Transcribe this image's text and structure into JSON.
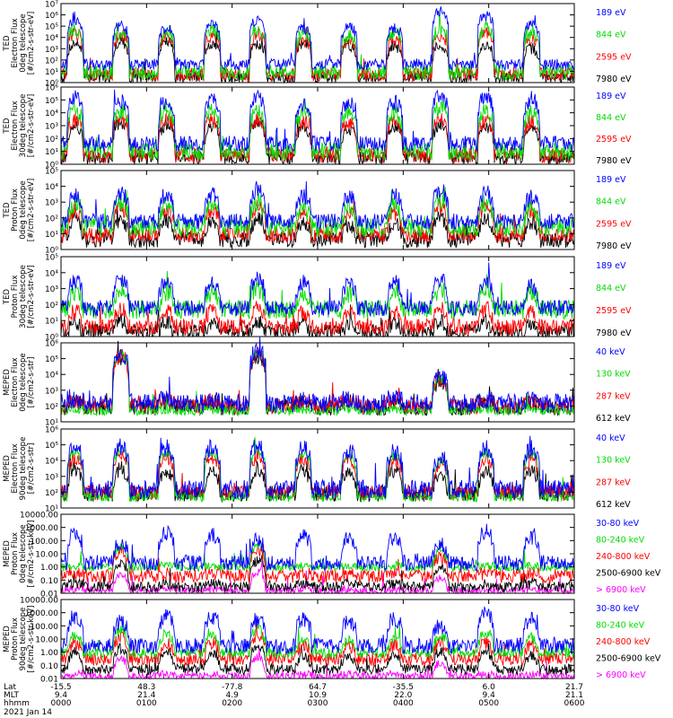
{
  "figure": {
    "date": "2021 Jan 14",
    "footer_row_labels": [
      "Lat",
      "MLT",
      "hhmm"
    ]
  },
  "colors": {
    "black": "#000000",
    "red": "#ff0000",
    "green": "#00dd00",
    "blue": "#0000ff",
    "magenta": "#ff00ff",
    "white": "#ffffff"
  },
  "chart_data": [
    {
      "type": "line",
      "id": "ted-electron-0",
      "ylabel": [
        "TED",
        "Electron Flux",
        "0deg telescope",
        "[#/cm2-s-str-eV]"
      ],
      "yscale": "log",
      "ylim": [
        1,
        10000000
      ],
      "yticks": [
        "10⁰",
        "10¹",
        "10²",
        "10³",
        "10⁴",
        "10⁵",
        "10⁶",
        "10⁷"
      ],
      "ytick_values": [
        1,
        10,
        100,
        1000,
        10000,
        100000,
        1000000,
        10000000
      ],
      "xlim": [
        0,
        360
      ],
      "series": [
        {
          "name": "7980 eV",
          "color": "black",
          "base": 8,
          "quiet": 3,
          "noise": 0.5,
          "amp": [
            3000,
            4000,
            4000,
            3000,
            2500,
            3000,
            2000,
            1500,
            2000,
            1500,
            1000
          ]
        },
        {
          "name": "2595 eV",
          "color": "red",
          "base": 20,
          "quiet": 5,
          "noise": 0.6,
          "amp": [
            20000,
            15000,
            12000,
            12000,
            15000,
            6000,
            4000,
            6000,
            15000,
            30000,
            8000
          ]
        },
        {
          "name": "844 eV",
          "color": "green",
          "base": 50,
          "quiet": 8,
          "noise": 0.7,
          "amp": [
            60000,
            30000,
            30000,
            40000,
            60000,
            15000,
            15000,
            20000,
            80000,
            60000,
            30000
          ]
        },
        {
          "name": "189 eV",
          "color": "blue",
          "base": 80,
          "quiet": 40,
          "noise": 0.5,
          "amp": [
            300000,
            100000,
            60000,
            150000,
            300000,
            60000,
            100000,
            80000,
            2000000,
            800000,
            150000
          ]
        }
      ]
    },
    {
      "type": "line",
      "id": "ted-electron-30",
      "ylabel": [
        "TED",
        "Electron Flux",
        "30deg telescope",
        "[#/cm2-s-str-eV]"
      ],
      "yscale": "log",
      "ylim": [
        1,
        1000000
      ],
      "yticks": [
        "10⁰",
        "10¹",
        "10²",
        "10³",
        "10⁴",
        "10⁵",
        "10⁶"
      ],
      "ytick_values": [
        1,
        10,
        100,
        1000,
        10000,
        100000,
        1000000
      ],
      "xlim": [
        0,
        360
      ],
      "series": [
        {
          "name": "7980 eV",
          "color": "black",
          "base": 6,
          "quiet": 3,
          "noise": 0.5,
          "amp": [
            800,
            1500,
            1000,
            800,
            1500,
            600,
            600,
            800,
            1000,
            800,
            500
          ]
        },
        {
          "name": "2595 eV",
          "color": "red",
          "base": 15,
          "quiet": 5,
          "noise": 0.6,
          "amp": [
            3000,
            3000,
            3000,
            2500,
            3000,
            2000,
            2000,
            2500,
            3000,
            2000,
            2000
          ]
        },
        {
          "name": "844 eV",
          "color": "green",
          "base": 30,
          "quiet": 10,
          "noise": 0.7,
          "amp": [
            15000,
            12000,
            12000,
            12000,
            12000,
            8000,
            8000,
            10000,
            30000,
            12000,
            8000
          ]
        },
        {
          "name": "189 eV",
          "color": "blue",
          "base": 60,
          "quiet": 40,
          "noise": 0.6,
          "amp": [
            150000,
            80000,
            60000,
            100000,
            150000,
            40000,
            60000,
            60000,
            200000,
            150000,
            60000
          ]
        }
      ]
    },
    {
      "type": "line",
      "id": "ted-proton-0",
      "ylabel": [
        "TED",
        "Proton Flux",
        "0deg telescope",
        "[#/cm2-s-str-eV]"
      ],
      "yscale": "log",
      "ylim": [
        1,
        100000
      ],
      "yticks": [
        "10⁰",
        "10¹",
        "10²",
        "10³",
        "10⁴",
        "10⁵"
      ],
      "ytick_values": [
        1,
        10,
        100,
        1000,
        10000,
        100000
      ],
      "xlim": [
        0,
        360
      ],
      "series": [
        {
          "name": "7980 eV",
          "color": "black",
          "base": 5,
          "quiet": 4,
          "noise": 0.5,
          "amp": [
            60,
            80,
            60,
            60,
            80,
            50,
            40,
            50,
            100,
            80,
            50
          ]
        },
        {
          "name": "2595 eV",
          "color": "red",
          "base": 12,
          "quiet": 8,
          "noise": 0.5,
          "amp": [
            300,
            400,
            300,
            300,
            500,
            200,
            200,
            200,
            600,
            400,
            200
          ]
        },
        {
          "name": "844 eV",
          "color": "green",
          "base": 30,
          "quiet": 25,
          "noise": 0.6,
          "amp": [
            800,
            1000,
            600,
            700,
            1000,
            400,
            400,
            500,
            1500,
            800,
            400
          ]
        },
        {
          "name": "189 eV",
          "color": "blue",
          "base": 60,
          "quiet": 60,
          "noise": 0.5,
          "amp": [
            3000,
            4000,
            3000,
            3000,
            5000,
            2500,
            2000,
            2500,
            6000,
            4000,
            2000
          ]
        }
      ]
    },
    {
      "type": "line",
      "id": "ted-proton-30",
      "ylabel": [
        "TED",
        "Proton Flux",
        "30deg telescope",
        "[#/cm2-s-str-eV]"
      ],
      "yscale": "log",
      "ylim": [
        1,
        100000
      ],
      "yticks": [
        "10⁰",
        "10¹",
        "10²",
        "10³",
        "10⁴",
        "10⁵"
      ],
      "ytick_values": [
        1,
        10,
        100,
        1000,
        10000,
        100000
      ],
      "xlim": [
        0,
        360
      ],
      "series": [
        {
          "name": "7980 eV",
          "color": "black",
          "base": 2,
          "quiet": 2,
          "noise": 0.5,
          "amp": [
            8,
            10,
            8,
            8,
            10,
            6,
            6,
            8,
            10,
            8,
            6
          ]
        },
        {
          "name": "2595 eV",
          "color": "red",
          "base": 5,
          "quiet": 4,
          "noise": 0.5,
          "amp": [
            40,
            50,
            40,
            40,
            60,
            30,
            30,
            30,
            60,
            50,
            30
          ]
        },
        {
          "name": "844 eV",
          "color": "green",
          "base": 60,
          "quiet": 50,
          "noise": 0.6,
          "amp": [
            600,
            800,
            600,
            600,
            900,
            500,
            500,
            600,
            900,
            800,
            500
          ]
        },
        {
          "name": "189 eV",
          "color": "blue",
          "base": 60,
          "quiet": 60,
          "noise": 0.5,
          "amp": [
            3000,
            4000,
            3000,
            2500,
            4000,
            2500,
            2000,
            2500,
            4000,
            3000,
            1500
          ]
        }
      ]
    },
    {
      "type": "line",
      "id": "meped-electron-0",
      "ylabel": [
        "MEPED",
        "Electron Flux",
        "0deg telescope",
        "[#/cm2-s-str]"
      ],
      "yscale": "log",
      "ylim": [
        10,
        1000000
      ],
      "yticks": [
        "10¹",
        "10²",
        "10³",
        "10⁴",
        "10⁵",
        "10⁶"
      ],
      "ytick_values": [
        10,
        100,
        1000,
        10000,
        100000,
        1000000
      ],
      "xlim": [
        0,
        360
      ],
      "series": [
        {
          "name": "612 keV",
          "color": "black",
          "base": 150,
          "quiet": 80,
          "noise": 0.5,
          "amp": [
            0,
            100000,
            0,
            0,
            120000,
            0,
            0,
            0,
            4000,
            0,
            0
          ]
        },
        {
          "name": "287 keV",
          "color": "red",
          "base": 200,
          "quiet": 100,
          "noise": 0.5,
          "amp": [
            0,
            150000,
            0,
            0,
            200000,
            0,
            0,
            0,
            5000,
            0,
            0
          ]
        },
        {
          "name": "130 keV",
          "color": "green",
          "base": 60,
          "quiet": 50,
          "noise": 0.3,
          "amp": [
            0,
            200000,
            0,
            0,
            300000,
            0,
            0,
            0,
            6000,
            0,
            0
          ]
        },
        {
          "name": "40 keV",
          "color": "blue",
          "base": 250,
          "quiet": 150,
          "noise": 0.6,
          "amp": [
            0,
            250000,
            0,
            0,
            400000,
            0,
            0,
            0,
            8000,
            0,
            0
          ]
        }
      ]
    },
    {
      "type": "line",
      "id": "meped-electron-90",
      "ylabel": [
        "MEPED",
        "Electron Flux",
        "90deg telescope",
        "[#/cm2-s-str]"
      ],
      "yscale": "log",
      "ylim": [
        10,
        1000000
      ],
      "yticks": [
        "10¹",
        "10²",
        "10³",
        "10⁴",
        "10⁵",
        "10⁶"
      ],
      "ytick_values": [
        10,
        100,
        1000,
        10000,
        100000,
        1000000
      ],
      "xlim": [
        0,
        360
      ],
      "series": [
        {
          "name": "612 keV",
          "color": "black",
          "base": 150,
          "quiet": 80,
          "noise": 0.5,
          "amp": [
            2000,
            3000,
            2000,
            2000,
            3000,
            2000,
            2000,
            2000,
            1000,
            2000,
            2000
          ]
        },
        {
          "name": "287 keV",
          "color": "red",
          "base": 200,
          "quiet": 100,
          "noise": 0.5,
          "amp": [
            15000,
            20000,
            15000,
            15000,
            20000,
            15000,
            10000,
            10000,
            5000,
            15000,
            10000
          ]
        },
        {
          "name": "130 keV",
          "color": "green",
          "base": 60,
          "quiet": 50,
          "noise": 0.3,
          "amp": [
            30000,
            40000,
            30000,
            30000,
            40000,
            25000,
            20000,
            20000,
            8000,
            30000,
            25000
          ]
        },
        {
          "name": "40 keV",
          "color": "blue",
          "base": 250,
          "quiet": 150,
          "noise": 0.6,
          "amp": [
            60000,
            80000,
            60000,
            60000,
            80000,
            50000,
            40000,
            40000,
            15000,
            60000,
            50000
          ]
        }
      ]
    },
    {
      "type": "line",
      "id": "meped-proton-0",
      "ylabel": [
        "MEPED",
        "Proton Flux",
        "0deg telescope",
        "[#/cm2-s-str-keV]"
      ],
      "yscale": "log",
      "ylim": [
        0.01,
        10000
      ],
      "yticks": [
        "0.01",
        "0.10",
        "1.00",
        "10.00",
        "100.00",
        "1000.00",
        "10000.00"
      ],
      "ytick_values": [
        0.01,
        0.1,
        1,
        10,
        100,
        1000,
        10000
      ],
      "xlim": [
        0,
        360
      ],
      "series": [
        {
          "name": "> 6900 keV",
          "color": "magenta",
          "base": 0.02,
          "quiet": 0.015,
          "noise": 0.3,
          "amp": [
            0,
            0.3,
            0,
            0,
            0.4,
            0,
            0,
            0,
            0.15,
            0,
            0
          ]
        },
        {
          "name": "2500-6900 keV",
          "color": "black",
          "base": 0.05,
          "quiet": 0.03,
          "noise": 0.4,
          "amp": [
            0,
            2,
            0,
            0,
            3,
            0,
            0,
            0,
            1,
            0,
            0
          ]
        },
        {
          "name": "240-800 keV",
          "color": "red",
          "base": 0.3,
          "quiet": 0.2,
          "noise": 0.5,
          "amp": [
            0,
            15,
            0,
            0,
            20,
            0,
            0,
            0,
            6,
            0,
            0
          ]
        },
        {
          "name": "80-240 keV",
          "color": "green",
          "base": 1.2,
          "quiet": 0.9,
          "noise": 0.3,
          "amp": [
            0,
            30,
            0,
            0,
            40,
            0,
            0,
            0,
            15,
            0,
            0
          ]
        },
        {
          "name": "30-80 keV",
          "color": "blue",
          "base": 3,
          "quiet": 2,
          "noise": 0.6,
          "amp": [
            300,
            80,
            400,
            300,
            100,
            200,
            150,
            200,
            60,
            500,
            150
          ]
        }
      ]
    },
    {
      "type": "line",
      "id": "meped-proton-90",
      "ylabel": [
        "MEPED",
        "Proton Flux",
        "90deg telescope",
        "[#/cm2-s-str-keV]"
      ],
      "yscale": "log",
      "ylim": [
        0.01,
        10000
      ],
      "yticks": [
        "0.01",
        "0.10",
        "1.00",
        "10.00",
        "100.00",
        "1000.00",
        "10000.00"
      ],
      "ytick_values": [
        0.01,
        0.1,
        1,
        10,
        100,
        1000,
        10000
      ],
      "xlim": [
        0,
        360
      ],
      "series": [
        {
          "name": "> 6900 keV",
          "color": "magenta",
          "base": 0.02,
          "quiet": 0.015,
          "noise": 0.3,
          "amp": [
            0,
            0.3,
            0,
            0,
            0.4,
            0,
            0,
            0,
            0.15,
            0,
            0
          ]
        },
        {
          "name": "2500-6900 keV",
          "color": "black",
          "base": 0.1,
          "quiet": 0.05,
          "noise": 0.4,
          "amp": [
            1,
            2,
            1,
            1,
            3,
            0.5,
            0.5,
            0.5,
            1,
            1,
            0.5
          ]
        },
        {
          "name": "240-800 keV",
          "color": "red",
          "base": 0.5,
          "quiet": 0.3,
          "noise": 0.5,
          "amp": [
            5,
            15,
            5,
            5,
            20,
            3,
            3,
            3,
            6,
            5,
            3
          ]
        },
        {
          "name": "80-240 keV",
          "color": "green",
          "base": 1.2,
          "quiet": 0.9,
          "noise": 0.4,
          "amp": [
            20,
            40,
            20,
            20,
            50,
            10,
            10,
            10,
            15,
            30,
            10
          ]
        },
        {
          "name": "30-80 keV",
          "color": "blue",
          "base": 5,
          "quiet": 3,
          "noise": 0.6,
          "amp": [
            500,
            200,
            600,
            500,
            300,
            300,
            200,
            300,
            100,
            800,
            300
          ]
        }
      ]
    }
  ],
  "x_axis": {
    "lat": [
      "-15.5",
      "48.3",
      "-77.8",
      "64.7",
      "-35.5",
      "6.0",
      "21.7"
    ],
    "mlt": [
      "9.4",
      "21.4",
      "4.9",
      "10.9",
      "22.0",
      "9.4",
      "21.1"
    ],
    "hhmm": [
      "0000",
      "0100",
      "0200",
      "0300",
      "0400",
      "0500",
      "0600"
    ]
  }
}
